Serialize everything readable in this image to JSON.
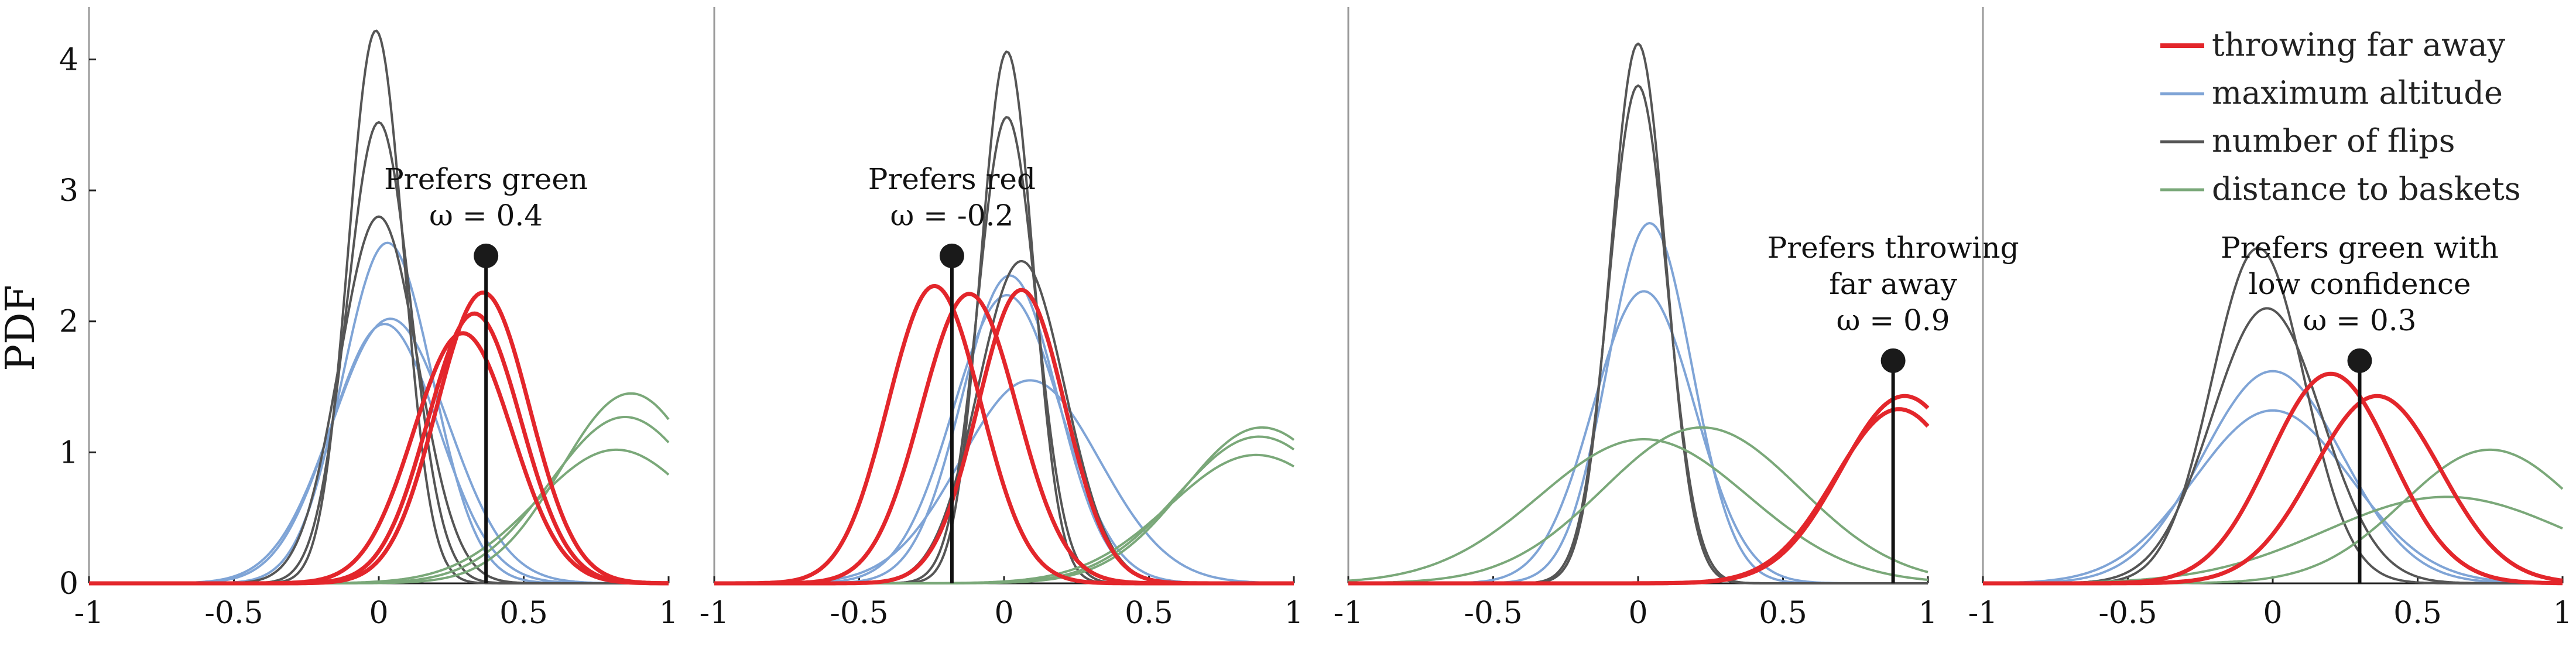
{
  "chart_data": [
    {
      "type": "line",
      "title": "",
      "xlabel": "",
      "ylabel": "PDF",
      "xlim": [
        -1,
        1
      ],
      "ylim": [
        0,
        4.4
      ],
      "xticks": [
        -1,
        -0.5,
        0,
        0.5,
        1
      ],
      "xtick_labels": [
        "-1",
        "-0.5",
        "0",
        "0.5",
        "1"
      ],
      "yticks": [
        0,
        1,
        2,
        3,
        4
      ],
      "ytick_labels": [
        "0",
        "1",
        "2",
        "3",
        "4"
      ],
      "grid": false,
      "series": [
        {
          "group": "maximum altitude",
          "color": "#7fa4d6",
          "mu": 0.03,
          "sigma": 0.155,
          "peak": 2.6
        },
        {
          "group": "maximum altitude",
          "color": "#7fa4d6",
          "mu": 0.02,
          "sigma": 0.185,
          "peak": 1.98
        },
        {
          "group": "maximum altitude",
          "color": "#7fa4d6",
          "mu": 0.04,
          "sigma": 0.2,
          "peak": 2.02
        },
        {
          "group": "number of flips",
          "color": "#555555",
          "mu": -0.01,
          "sigma": 0.095,
          "peak": 4.22
        },
        {
          "group": "number of flips",
          "color": "#555555",
          "mu": 0.0,
          "sigma": 0.11,
          "peak": 3.52
        },
        {
          "group": "number of flips",
          "color": "#555555",
          "mu": 0.0,
          "sigma": 0.135,
          "peak": 2.8
        },
        {
          "group": "distance to baskets",
          "color": "#7aa879",
          "mu": 0.87,
          "sigma": 0.24,
          "peak": 1.45
        },
        {
          "group": "distance to baskets",
          "color": "#7aa879",
          "mu": 0.85,
          "sigma": 0.26,
          "peak": 1.27
        },
        {
          "group": "distance to baskets",
          "color": "#7aa879",
          "mu": 0.82,
          "sigma": 0.28,
          "peak": 1.02
        },
        {
          "group": "throwing far away",
          "color": "#e3262b",
          "mu": 0.36,
          "sigma": 0.16,
          "peak": 2.22
        },
        {
          "group": "throwing far away",
          "color": "#e3262b",
          "mu": 0.33,
          "sigma": 0.16,
          "peak": 2.06
        },
        {
          "group": "throwing far away",
          "color": "#e3262b",
          "mu": 0.29,
          "sigma": 0.17,
          "peak": 1.91
        }
      ],
      "omega": {
        "x": 0.37,
        "top": 2.5
      },
      "annotation": [
        "Prefers green",
        "ω = 0.4"
      ]
    },
    {
      "type": "line",
      "title": "",
      "xlabel": "",
      "ylabel": "",
      "xlim": [
        -1,
        1
      ],
      "ylim": [
        0,
        4.4
      ],
      "xticks": [
        -1,
        -0.5,
        0,
        0.5,
        1
      ],
      "xtick_labels": [
        "-1",
        "-0.5",
        "0",
        "0.5",
        "1"
      ],
      "grid": false,
      "series": [
        {
          "group": "maximum altitude",
          "color": "#7fa4d6",
          "mu": 0.02,
          "sigma": 0.165,
          "peak": 2.35
        },
        {
          "group": "maximum altitude",
          "color": "#7fa4d6",
          "mu": 0.01,
          "sigma": 0.185,
          "peak": 2.2
        },
        {
          "group": "maximum altitude",
          "color": "#7fa4d6",
          "mu": 0.09,
          "sigma": 0.24,
          "peak": 1.55
        },
        {
          "group": "number of flips",
          "color": "#555555",
          "mu": 0.01,
          "sigma": 0.09,
          "peak": 4.06
        },
        {
          "group": "number of flips",
          "color": "#555555",
          "mu": 0.01,
          "sigma": 0.1,
          "peak": 3.56
        },
        {
          "group": "number of flips",
          "color": "#555555",
          "mu": 0.06,
          "sigma": 0.15,
          "peak": 2.46
        },
        {
          "group": "distance to baskets",
          "color": "#7aa879",
          "mu": 0.89,
          "sigma": 0.27,
          "peak": 1.19
        },
        {
          "group": "distance to baskets",
          "color": "#7aa879",
          "mu": 0.88,
          "sigma": 0.28,
          "peak": 1.12
        },
        {
          "group": "distance to baskets",
          "color": "#7aa879",
          "mu": 0.87,
          "sigma": 0.3,
          "peak": 0.98
        },
        {
          "group": "throwing far away",
          "color": "#e3262b",
          "mu": -0.24,
          "sigma": 0.16,
          "peak": 2.27
        },
        {
          "group": "throwing far away",
          "color": "#e3262b",
          "mu": -0.12,
          "sigma": 0.165,
          "peak": 2.21
        },
        {
          "group": "throwing far away",
          "color": "#e3262b",
          "mu": 0.06,
          "sigma": 0.15,
          "peak": 2.24
        }
      ],
      "omega": {
        "x": -0.18,
        "top": 2.5
      },
      "annotation": [
        "Prefers red",
        "ω = -0.2"
      ]
    },
    {
      "type": "line",
      "title": "",
      "xlabel": "",
      "ylabel": "",
      "xlim": [
        -1,
        1
      ],
      "ylim": [
        0,
        4.4
      ],
      "xticks": [
        -1,
        -0.5,
        0,
        0.5,
        1
      ],
      "xtick_labels": [
        "-1",
        "-0.5",
        "0",
        "0.5",
        "1"
      ],
      "grid": false,
      "series": [
        {
          "group": "maximum altitude",
          "color": "#7fa4d6",
          "mu": 0.04,
          "sigma": 0.145,
          "peak": 2.75
        },
        {
          "group": "maximum altitude",
          "color": "#7fa4d6",
          "mu": 0.02,
          "sigma": 0.175,
          "peak": 2.23
        },
        {
          "group": "number of flips",
          "color": "#555555",
          "mu": 0.0,
          "sigma": 0.095,
          "peak": 4.12
        },
        {
          "group": "number of flips",
          "color": "#555555",
          "mu": 0.0,
          "sigma": 0.1,
          "peak": 3.8
        },
        {
          "group": "distance to baskets",
          "color": "#7aa879",
          "mu": 0.22,
          "sigma": 0.34,
          "peak": 1.19
        },
        {
          "group": "distance to baskets",
          "color": "#7aa879",
          "mu": 0.02,
          "sigma": 0.36,
          "peak": 1.1
        },
        {
          "group": "throwing far away",
          "color": "#e3262b",
          "mu": 0.92,
          "sigma": 0.22,
          "peak": 1.43
        },
        {
          "group": "throwing far away",
          "color": "#e3262b",
          "mu": 0.9,
          "sigma": 0.22,
          "peak": 1.33
        }
      ],
      "omega": {
        "x": 0.88,
        "top": 1.7
      },
      "annotation": [
        "Prefers throwing",
        "far away",
        "ω = 0.9"
      ]
    },
    {
      "type": "line",
      "title": "",
      "xlabel": "",
      "ylabel": "",
      "xlim": [
        -1,
        1
      ],
      "ylim": [
        0,
        4.4
      ],
      "xticks": [
        -1,
        -0.5,
        0,
        0.5,
        1
      ],
      "xtick_labels": [
        "-1",
        "-0.5",
        "0",
        "0.5",
        "1"
      ],
      "grid": false,
      "series": [
        {
          "group": "maximum altitude",
          "color": "#7fa4d6",
          "mu": 0.0,
          "sigma": 0.24,
          "peak": 1.62
        },
        {
          "group": "maximum altitude",
          "color": "#7fa4d6",
          "mu": 0.0,
          "sigma": 0.27,
          "peak": 1.32
        },
        {
          "group": "number of flips",
          "color": "#555555",
          "mu": -0.05,
          "sigma": 0.16,
          "peak": 2.56
        },
        {
          "group": "number of flips",
          "color": "#555555",
          "mu": -0.02,
          "sigma": 0.19,
          "peak": 2.1
        },
        {
          "group": "distance to baskets",
          "color": "#7aa879",
          "mu": 0.75,
          "sigma": 0.3,
          "peak": 1.02
        },
        {
          "group": "distance to baskets",
          "color": "#7aa879",
          "mu": 0.6,
          "sigma": 0.42,
          "peak": 0.66
        },
        {
          "group": "throwing far away",
          "color": "#e3262b",
          "mu": 0.2,
          "sigma": 0.21,
          "peak": 1.6
        },
        {
          "group": "throwing far away",
          "color": "#e3262b",
          "mu": 0.36,
          "sigma": 0.22,
          "peak": 1.43
        }
      ],
      "omega": {
        "x": 0.3,
        "top": 1.7
      },
      "annotation": [
        "Prefers green with",
        "low confidence",
        "ω = 0.3"
      ]
    }
  ],
  "legend": {
    "placement": "top-right",
    "entries": [
      {
        "label": "throwing far away",
        "color": "#e3262b"
      },
      {
        "label": "maximum altitude",
        "color": "#7fa4d6"
      },
      {
        "label": "number of flips",
        "color": "#555555"
      },
      {
        "label": "distance to baskets",
        "color": "#7aa879"
      }
    ]
  }
}
